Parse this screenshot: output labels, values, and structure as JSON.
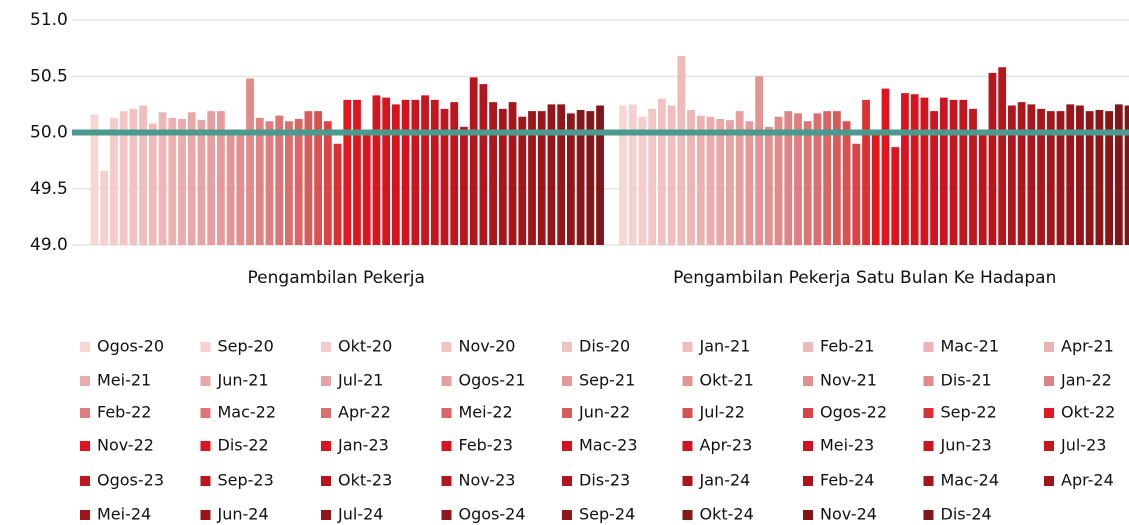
{
  "chart_data": {
    "type": "grouped_bar",
    "categories": [
      "Pengambilan Pekerja",
      "Pengambilan Pekerja Satu Bulan Ke Hadapan"
    ],
    "ylim": [
      49.0,
      51.0
    ],
    "yticks": [
      {
        "value": 49,
        "label": "49.0"
      },
      49.5,
      {
        "value": 50,
        "label": "50.0"
      },
      50.5,
      {
        "value": 51,
        "label": "51.0"
      }
    ],
    "grid": true,
    "reference_line": {
      "value": 50,
      "color": "#4a9a8e"
    },
    "legend": "bottom",
    "series": [
      {
        "name": "Ogos-20",
        "color": "#f7d6d6",
        "values": [
          50.16,
          50.24
        ]
      },
      {
        "name": "Sep-20",
        "color": "#f5d0d0",
        "values": [
          49.66,
          50.25
        ]
      },
      {
        "name": "Okt-20",
        "color": "#f4cccc",
        "values": [
          50.13,
          50.14
        ]
      },
      {
        "name": "Nov-20",
        "color": "#f2c6c6",
        "values": [
          50.19,
          50.21
        ]
      },
      {
        "name": "Dis-20",
        "color": "#f1c2c2",
        "values": [
          50.21,
          50.3
        ]
      },
      {
        "name": "Jan-21",
        "color": "#f0bebe",
        "values": [
          50.24,
          50.24
        ]
      },
      {
        "name": "Feb-21",
        "color": "#eebaba",
        "values": [
          50.08,
          50.68
        ]
      },
      {
        "name": "Mac-21",
        "color": "#edb5b5",
        "values": [
          50.18,
          50.2
        ]
      },
      {
        "name": "Apr-21",
        "color": "#ecb1b1",
        "values": [
          50.13,
          50.15
        ]
      },
      {
        "name": "Mei-21",
        "color": "#eaacac",
        "values": [
          50.12,
          50.14
        ]
      },
      {
        "name": "Jun-21",
        "color": "#e9a8a8",
        "values": [
          50.18,
          50.12
        ]
      },
      {
        "name": "Jul-21",
        "color": "#e8a3a3",
        "values": [
          50.11,
          50.11
        ]
      },
      {
        "name": "Ogos-21",
        "color": "#e69e9e",
        "values": [
          50.19,
          50.19
        ]
      },
      {
        "name": "Sep-21",
        "color": "#e59999",
        "values": [
          50.19,
          50.1
        ]
      },
      {
        "name": "Okt-21",
        "color": "#e39494",
        "values": [
          50.0,
          50.5
        ]
      },
      {
        "name": "Nov-21",
        "color": "#e28f8f",
        "values": [
          50.0,
          50.05
        ]
      },
      {
        "name": "Dis-21",
        "color": "#e18a8a",
        "values": [
          50.48,
          50.14
        ]
      },
      {
        "name": "Jan-22",
        "color": "#df8484",
        "values": [
          50.13,
          50.19
        ]
      },
      {
        "name": "Feb-22",
        "color": "#de7e7e",
        "values": [
          50.1,
          50.17
        ]
      },
      {
        "name": "Mac-22",
        "color": "#dc7676",
        "values": [
          50.15,
          50.1
        ]
      },
      {
        "name": "Apr-22",
        "color": "#db6e6e",
        "values": [
          50.1,
          50.17
        ]
      },
      {
        "name": "Mei-22",
        "color": "#da6565",
        "values": [
          50.12,
          50.19
        ]
      },
      {
        "name": "Jun-22",
        "color": "#d95c5c",
        "values": [
          50.19,
          50.19
        ]
      },
      {
        "name": "Jul-22",
        "color": "#d95252",
        "values": [
          50.19,
          50.1
        ]
      },
      {
        "name": "Ogos-22",
        "color": "#da4444",
        "values": [
          50.1,
          49.9
        ]
      },
      {
        "name": "Sep-22",
        "color": "#dc3030",
        "values": [
          49.9,
          50.29
        ]
      },
      {
        "name": "Okt-22",
        "color": "#e01a1f",
        "values": [
          50.29,
          50.0
        ]
      },
      {
        "name": "Nov-22",
        "color": "#df1620",
        "values": [
          50.29,
          50.39
        ]
      },
      {
        "name": "Dis-22",
        "color": "#dd1520",
        "values": [
          50.0,
          49.87
        ]
      },
      {
        "name": "Jan-23",
        "color": "#da1520",
        "values": [
          50.33,
          50.35
        ]
      },
      {
        "name": "Feb-23",
        "color": "#d71520",
        "values": [
          50.31,
          50.34
        ]
      },
      {
        "name": "Mac-23",
        "color": "#d41520",
        "values": [
          50.25,
          50.31
        ]
      },
      {
        "name": "Apr-23",
        "color": "#d01520",
        "values": [
          50.29,
          50.19
        ]
      },
      {
        "name": "Mei-23",
        "color": "#cc1520",
        "values": [
          50.29,
          50.31
        ]
      },
      {
        "name": "Jun-23",
        "color": "#c81520",
        "values": [
          50.33,
          50.29
        ]
      },
      {
        "name": "Jul-23",
        "color": "#c4161f",
        "values": [
          50.29,
          50.29
        ]
      },
      {
        "name": "Ogos-23",
        "color": "#c0161f",
        "values": [
          50.21,
          50.21
        ]
      },
      {
        "name": "Sep-23",
        "color": "#bc161e",
        "values": [
          50.27,
          50.0
        ]
      },
      {
        "name": "Okt-23",
        "color": "#b8161e",
        "values": [
          50.05,
          50.53
        ]
      },
      {
        "name": "Nov-23",
        "color": "#b4161d",
        "values": [
          50.49,
          50.58
        ]
      },
      {
        "name": "Dis-23",
        "color": "#b0161d",
        "values": [
          50.43,
          50.24
        ]
      },
      {
        "name": "Jan-24",
        "color": "#ac161c",
        "values": [
          50.27,
          50.27
        ]
      },
      {
        "name": "Feb-24",
        "color": "#a8161c",
        "values": [
          50.21,
          50.25
        ]
      },
      {
        "name": "Mac-24",
        "color": "#a4161b",
        "values": [
          50.27,
          50.21
        ]
      },
      {
        "name": "Apr-24",
        "color": "#a0161b",
        "values": [
          50.14,
          50.19
        ]
      },
      {
        "name": "Mei-24",
        "color": "#9c161a",
        "values": [
          50.19,
          50.19
        ]
      },
      {
        "name": "Jun-24",
        "color": "#98161a",
        "values": [
          50.19,
          50.25
        ]
      },
      {
        "name": "Jul-24",
        "color": "#941619",
        "values": [
          50.25,
          50.24
        ]
      },
      {
        "name": "Ogos-24",
        "color": "#901619",
        "values": [
          50.25,
          50.19
        ]
      },
      {
        "name": "Sep-24",
        "color": "#8c1618",
        "values": [
          50.17,
          50.2
        ]
      },
      {
        "name": "Okt-24",
        "color": "#881618",
        "values": [
          50.2,
          50.19
        ]
      },
      {
        "name": "Nov-24",
        "color": "#841617",
        "values": [
          50.19,
          50.25
        ]
      },
      {
        "name": "Dis-24",
        "color": "#801617",
        "values": [
          50.24,
          50.24
        ]
      }
    ]
  }
}
